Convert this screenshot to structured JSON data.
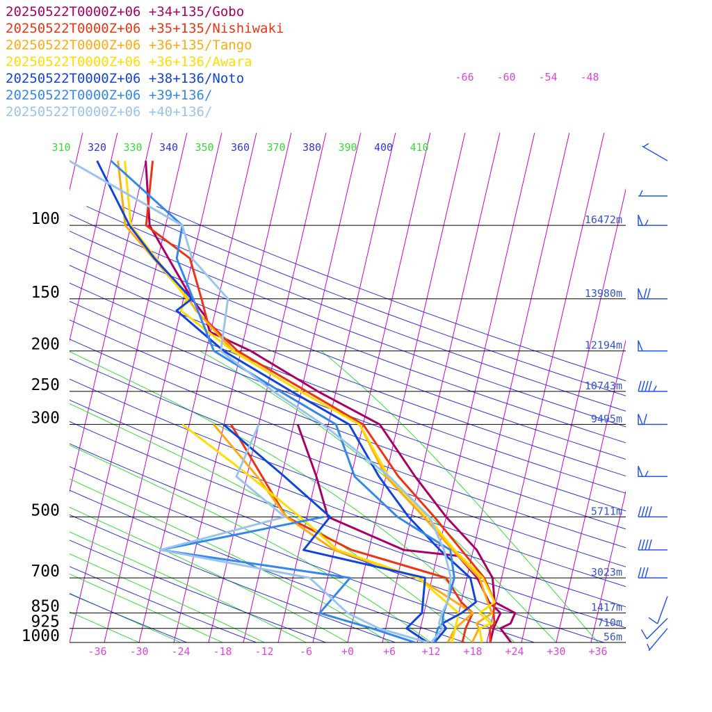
{
  "chart_data": {
    "type": "line",
    "subtype": "skew-t log-p sounding",
    "legend_placement": "top-left",
    "x_axis": {
      "unit": "°C",
      "tick_labels": [
        "-36",
        "-30",
        "-24",
        "-18",
        "-12",
        "-6",
        "+0",
        "+6",
        "+12",
        "+18",
        "+24",
        "+30",
        "+36"
      ],
      "range": [
        -40,
        40
      ]
    },
    "y_axis": {
      "unit": "hPa",
      "scale": "log",
      "range": [
        1000,
        70
      ],
      "levels": [
        {
          "p": 100,
          "label": "100",
          "height": "16472m"
        },
        {
          "p": 150,
          "label": "150",
          "height": "13980m"
        },
        {
          "p": 200,
          "label": "200",
          "height": "12194m"
        },
        {
          "p": 250,
          "label": "250",
          "height": "10743m"
        },
        {
          "p": 300,
          "label": "300",
          "height": "9495m"
        },
        {
          "p": 500,
          "label": "500",
          "height": "5711m"
        },
        {
          "p": 700,
          "label": "700",
          "height": "3023m"
        },
        {
          "p": 850,
          "label": "850",
          "height": "1417m"
        },
        {
          "p": 925,
          "label": "925",
          "height": "710m"
        },
        {
          "p": 1000,
          "label": "1000",
          "height": "56m"
        }
      ]
    },
    "theta_labels": [
      "310",
      "320",
      "330",
      "340",
      "350",
      "360",
      "370",
      "380",
      "390",
      "400",
      "410"
    ],
    "upper_temp_labels": [
      "-66",
      "-60",
      "-54",
      "-48"
    ],
    "colors": {
      "isobar": "#000000",
      "isotherm": "#cc00cc",
      "dry_adiabat": "#3333dd",
      "moist_adiabat": "#33dd33",
      "height_label": "#3355cc",
      "axis_label": "#dd44dd",
      "wind_barb": "#2255ee"
    },
    "series": [
      {
        "name": "20250522T0000Z+06 +34+135/Gobo",
        "color": "#aa0066",
        "temperature": [
          [
            1000,
            23.5
          ],
          [
            925,
            21.5
          ],
          [
            900,
            22.8
          ],
          [
            850,
            23.1
          ],
          [
            800,
            19.8
          ],
          [
            700,
            18.7
          ],
          [
            600,
            15.5
          ],
          [
            500,
            10
          ],
          [
            400,
            4.2
          ],
          [
            300,
            -2.6
          ],
          [
            250,
            -12.6
          ],
          [
            200,
            -23.6
          ],
          [
            180,
            -30.1
          ],
          [
            165,
            -31.3
          ],
          [
            150,
            -33.8
          ],
          [
            100,
            -42.3
          ],
          [
            70,
            -45
          ]
        ],
        "dewpoint": [
          [
            1000,
            20.5
          ],
          [
            925,
            20.5
          ],
          [
            850,
            21
          ],
          [
            800,
            19
          ],
          [
            700,
            16.5
          ],
          [
            620,
            13
          ],
          [
            600,
            5
          ],
          [
            500,
            -7
          ],
          [
            400,
            -10
          ],
          [
            300,
            -14.4
          ]
        ]
      },
      {
        "name": "20250522T0000Z+06 +35+135/Nishiwaki",
        "color": "#ee3311",
        "temperature": [
          [
            1000,
            20.5
          ],
          [
            925,
            20
          ],
          [
            900,
            20.5
          ],
          [
            850,
            20
          ],
          [
            800,
            19.8
          ],
          [
            700,
            17.5
          ],
          [
            600,
            13.3
          ],
          [
            500,
            8.3
          ],
          [
            400,
            1.8
          ],
          [
            300,
            -5
          ],
          [
            250,
            -14.2
          ],
          [
            200,
            -25.5
          ],
          [
            170,
            -30.8
          ],
          [
            150,
            -32.4
          ],
          [
            120,
            -35.4
          ],
          [
            100,
            -42.8
          ],
          [
            70,
            -44
          ]
        ],
        "dewpoint": [
          [
            1000,
            16.5
          ],
          [
            925,
            16.5
          ],
          [
            850,
            17
          ],
          [
            800,
            15
          ],
          [
            700,
            12
          ],
          [
            600,
            -2.5
          ],
          [
            500,
            -13
          ],
          [
            400,
            -17.8
          ],
          [
            300,
            -24
          ]
        ]
      },
      {
        "name": "20250522T0000Z+06 +36+135/Tango",
        "color": "#ffaa11",
        "temperature": [
          [
            1000,
            17.9
          ],
          [
            925,
            18.4
          ],
          [
            900,
            17.9
          ],
          [
            850,
            19.8
          ],
          [
            800,
            18.8
          ],
          [
            700,
            16.8
          ],
          [
            600,
            12
          ],
          [
            500,
            6.8
          ],
          [
            400,
            0
          ],
          [
            300,
            -5.5
          ],
          [
            250,
            -15.1
          ],
          [
            200,
            -26.1
          ],
          [
            160,
            -32.8
          ],
          [
            150,
            -34.3
          ],
          [
            100,
            -45.8
          ],
          [
            70,
            -49
          ]
        ],
        "dewpoint": [
          [
            1000,
            14.4
          ],
          [
            925,
            15
          ],
          [
            850,
            17
          ],
          [
            700,
            8
          ],
          [
            600,
            -5
          ],
          [
            500,
            -13
          ],
          [
            400,
            -18.5
          ],
          [
            300,
            -26.5
          ]
        ]
      },
      {
        "name": "20250522T0000Z+06 +36+136/Awara",
        "color": "#ffdd00",
        "temperature": [
          [
            1000,
            19.3
          ],
          [
            925,
            18.5
          ],
          [
            900,
            20
          ],
          [
            850,
            18
          ],
          [
            800,
            19.8
          ],
          [
            700,
            17.3
          ],
          [
            600,
            12.3
          ],
          [
            500,
            7.3
          ],
          [
            400,
            0.4
          ],
          [
            300,
            -5.5
          ],
          [
            250,
            -15.1
          ],
          [
            200,
            -26.2
          ],
          [
            160,
            -35
          ],
          [
            150,
            -34.5
          ],
          [
            100,
            -45
          ],
          [
            70,
            -48
          ]
        ],
        "dewpoint": [
          [
            1000,
            15
          ],
          [
            925,
            15
          ],
          [
            850,
            15
          ],
          [
            700,
            8
          ],
          [
            600,
            -4.5
          ],
          [
            500,
            -11
          ],
          [
            400,
            -19.5
          ],
          [
            300,
            -31
          ]
        ]
      },
      {
        "name": "20250522T0000Z+06 +38+136/Noto",
        "color": "#1144dd",
        "temperature": [
          [
            1000,
            12.5
          ],
          [
            925,
            13.7
          ],
          [
            900,
            13
          ],
          [
            850,
            15.4
          ],
          [
            800,
            17.1
          ],
          [
            700,
            15.5
          ],
          [
            600,
            10.2
          ],
          [
            500,
            4.6
          ],
          [
            400,
            -1
          ],
          [
            300,
            -7
          ],
          [
            250,
            -16.4
          ],
          [
            200,
            -27.5
          ],
          [
            160,
            -35.6
          ],
          [
            150,
            -33.8
          ],
          [
            120,
            -40.5
          ],
          [
            100,
            -45.2
          ],
          [
            70,
            -52
          ]
        ],
        "dewpoint": [
          [
            1000,
            11.5
          ],
          [
            925,
            8
          ],
          [
            850,
            9.7
          ],
          [
            700,
            9
          ],
          [
            600,
            -9.4
          ],
          [
            500,
            -6.7
          ],
          [
            400,
            -14.6
          ],
          [
            300,
            -25.1
          ]
        ]
      },
      {
        "name": "20250522T0000Z+06 +39+136/",
        "color": "#3388ee",
        "temperature": [
          [
            1000,
            12.5
          ],
          [
            925,
            12.5
          ],
          [
            900,
            13
          ],
          [
            850,
            12.8
          ],
          [
            800,
            13
          ],
          [
            700,
            13.2
          ],
          [
            600,
            11.7
          ],
          [
            500,
            3
          ],
          [
            400,
            -4.5
          ],
          [
            300,
            -8.9
          ],
          [
            250,
            -18
          ],
          [
            200,
            -28.9
          ],
          [
            150,
            -33.6
          ],
          [
            120,
            -37.3
          ],
          [
            100,
            -37.6
          ],
          [
            70,
            -50
          ]
        ],
        "dewpoint": [
          [
            1000,
            9.7
          ],
          [
            925,
            3
          ],
          [
            850,
            -5
          ],
          [
            700,
            -1.8
          ],
          [
            600,
            -30
          ],
          [
            500,
            -7.6
          ]
        ]
      },
      {
        "name": "20250522T0000Z+06 +40+136/",
        "color": "#99c4ee",
        "temperature": [
          [
            1000,
            12
          ],
          [
            925,
            13.2
          ],
          [
            900,
            12.5
          ],
          [
            850,
            12.6
          ],
          [
            800,
            13
          ],
          [
            700,
            12.7
          ],
          [
            600,
            10.8
          ],
          [
            500,
            7.6
          ],
          [
            400,
            0.5
          ],
          [
            300,
            -10.8
          ],
          [
            250,
            -19
          ],
          [
            200,
            -27.9
          ],
          [
            150,
            -28.6
          ],
          [
            120,
            -35.1
          ],
          [
            100,
            -37.6
          ],
          [
            70,
            -56
          ]
        ],
        "dewpoint": [
          [
            1000,
            11.5
          ],
          [
            925,
            4
          ],
          [
            850,
            -1
          ],
          [
            700,
            -7.6
          ],
          [
            600,
            -30
          ],
          [
            500,
            -13.2
          ],
          [
            400,
            -21.5
          ],
          [
            300,
            -20
          ]
        ]
      }
    ],
    "wind_barbs": [
      {
        "p": 70,
        "dir": 300,
        "kt": 5
      },
      {
        "p": 85,
        "dir": 270,
        "kt": 5
      },
      {
        "p": 100,
        "dir": 270,
        "kt": 55
      },
      {
        "p": 150,
        "dir": 270,
        "kt": 70
      },
      {
        "p": 200,
        "dir": 270,
        "kt": 50
      },
      {
        "p": 250,
        "dir": 270,
        "kt": 45
      },
      {
        "p": 300,
        "dir": 270,
        "kt": 60
      },
      {
        "p": 400,
        "dir": 270,
        "kt": 55
      },
      {
        "p": 500,
        "dir": 270,
        "kt": 40
      },
      {
        "p": 600,
        "dir": 270,
        "kt": 40
      },
      {
        "p": 700,
        "dir": 270,
        "kt": 30
      },
      {
        "p": 775,
        "dir": 200,
        "kt": 10
      },
      {
        "p": 875,
        "dir": 225,
        "kt": 10
      },
      {
        "p": 925,
        "dir": 220,
        "kt": 5
      }
    ]
  }
}
